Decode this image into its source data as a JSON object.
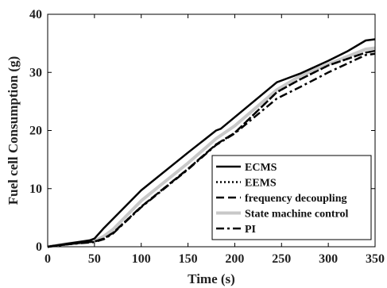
{
  "chart_data": {
    "type": "line",
    "xlabel": "Time (s)",
    "ylabel": "Fuel cell Consumption (g)",
    "xlim": [
      0,
      350
    ],
    "ylim": [
      0,
      40
    ],
    "xticks": [
      0,
      50,
      100,
      150,
      200,
      250,
      300,
      350
    ],
    "yticks": [
      0,
      10,
      20,
      30,
      40
    ],
    "legend_position": "bottom-right",
    "series": [
      {
        "name": "ECMS",
        "color": "#000000",
        "style": "solid",
        "x": [
          0,
          20,
          45,
          50,
          60,
          100,
          150,
          180,
          185,
          200,
          245,
          250,
          270,
          300,
          320,
          340,
          350
        ],
        "y": [
          0,
          0.5,
          1.1,
          1.4,
          3.2,
          9.7,
          16.2,
          20.0,
          20.3,
          22.3,
          28.3,
          28.6,
          29.8,
          32.0,
          33.6,
          35.5,
          35.7
        ]
      },
      {
        "name": "EEMS",
        "color": "#000000",
        "style": "dotted",
        "x": [
          0,
          20,
          50,
          60,
          70,
          100,
          150,
          180,
          200,
          245,
          270,
          300,
          340,
          350
        ],
        "y": [
          0,
          0.4,
          0.9,
          1.4,
          2.4,
          6.9,
          13.4,
          17.6,
          19.6,
          26.6,
          28.8,
          31.2,
          33.4,
          33.7
        ]
      },
      {
        "name": "frequency decoupling",
        "color": "#000000",
        "style": "dashed",
        "x": [
          0,
          20,
          50,
          60,
          70,
          100,
          150,
          180,
          200,
          245,
          270,
          300,
          340,
          350
        ],
        "y": [
          0,
          0.4,
          0.9,
          1.4,
          2.4,
          6.9,
          13.4,
          17.6,
          19.6,
          26.6,
          28.8,
          31.2,
          33.4,
          33.7
        ]
      },
      {
        "name": "State machine control",
        "color": "#c8c8c8",
        "style": "solid",
        "x": [
          0,
          20,
          50,
          60,
          70,
          100,
          150,
          180,
          200,
          245,
          270,
          300,
          340,
          350
        ],
        "y": [
          0,
          0.5,
          1.0,
          1.8,
          3.0,
          7.9,
          14.4,
          18.6,
          20.8,
          27.0,
          29.4,
          31.4,
          34.0,
          34.2
        ]
      },
      {
        "name": "PI",
        "color": "#000000",
        "style": "dashdot",
        "x": [
          0,
          20,
          50,
          60,
          70,
          100,
          150,
          180,
          200,
          245,
          270,
          300,
          340,
          350
        ],
        "y": [
          0,
          0.4,
          0.8,
          1.3,
          2.3,
          6.8,
          13.3,
          17.5,
          19.5,
          25.5,
          27.5,
          30.0,
          33.0,
          33.2
        ]
      }
    ]
  }
}
